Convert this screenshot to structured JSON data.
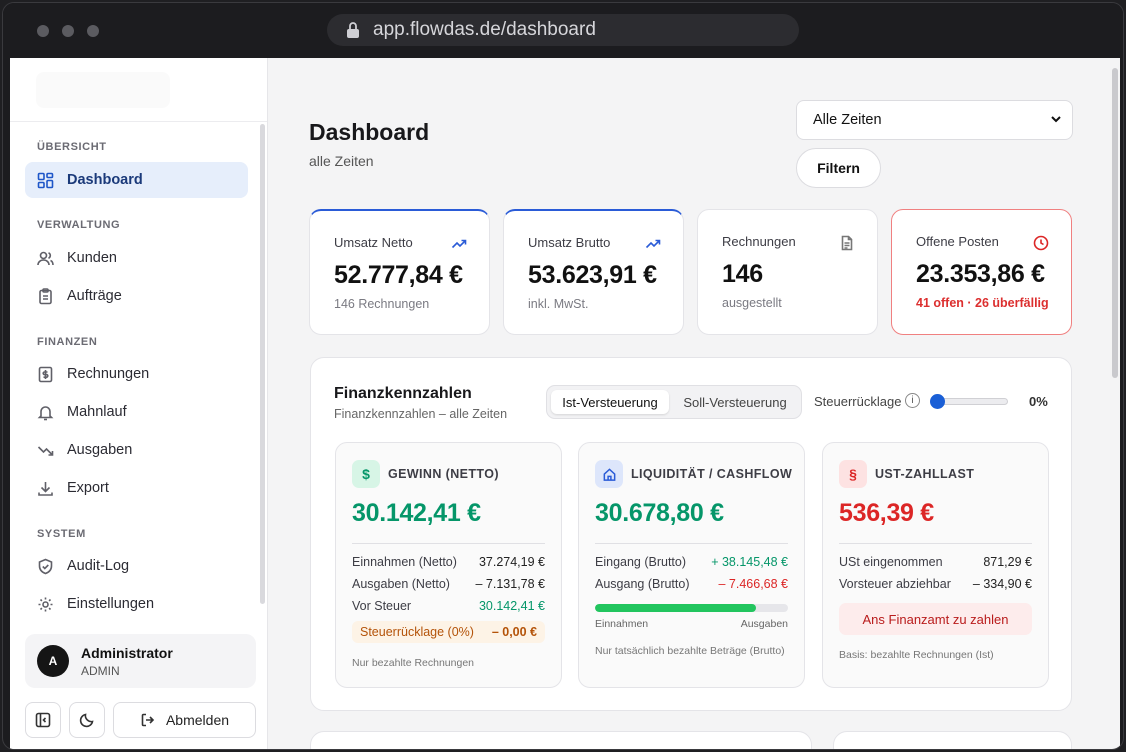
{
  "browser": {
    "url": "app.flowdas.de/dashboard"
  },
  "sidebar": {
    "sections": {
      "overview": "ÜBERSICHT",
      "admin": "VERWALTUNG",
      "finance": "FINANZEN",
      "system": "SYSTEM"
    },
    "items": {
      "dashboard": "Dashboard",
      "customers": "Kunden",
      "orders": "Aufträge",
      "invoices": "Rechnungen",
      "dunning": "Mahnlauf",
      "expenses": "Ausgaben",
      "export": "Export",
      "audit": "Audit-Log",
      "settings": "Einstellungen"
    },
    "active": "dashboard",
    "user": {
      "initial": "A",
      "name": "Administrator",
      "role": "ADMIN"
    },
    "logout_label": "Abmelden"
  },
  "header": {
    "title": "Dashboard",
    "subtitle": "alle Zeiten",
    "period_select": "Alle Zeiten",
    "filter_label": "Filtern"
  },
  "kpis": [
    {
      "label": "Umsatz Netto",
      "value": "52.777,84 €",
      "sub": "146 Rechnungen",
      "icon": "trend-up-icon"
    },
    {
      "label": "Umsatz Brutto",
      "value": "53.623,91 €",
      "sub": "inkl. MwSt.",
      "icon": "trend-up-icon"
    },
    {
      "label": "Rechnungen",
      "value": "146",
      "sub": "ausgestellt",
      "icon": "document-icon"
    },
    {
      "label": "Offene Posten",
      "value": "23.353,86 €",
      "sub": "41 offen · 26 überfällig",
      "icon": "clock-icon"
    }
  ],
  "finance": {
    "title": "Finanzkennzahlen",
    "subtitle": "Finanzkennzahlen – alle Zeiten",
    "tabs": [
      "Ist-Versteuerung",
      "Soll-Versteuerung"
    ],
    "active_tab": 0,
    "tax_reserve_label": "Steuerrücklage",
    "tax_reserve_value": "0%",
    "tax_reserve_level": 0,
    "profit": {
      "title": "GEWINN (NETTO)",
      "badge": "$",
      "value": "30.142,41 €",
      "rows": [
        {
          "label": "Einnahmen (Netto)",
          "value": "37.274,19 €"
        },
        {
          "label": "Ausgaben (Netto)",
          "value": "– 7.131,78 €"
        },
        {
          "label": "Vor Steuer",
          "value": "30.142,41 €"
        }
      ],
      "reserve_label": "Steuerrücklage (0%)",
      "reserve_value": "– 0,00 €",
      "note": "Nur bezahlte Rechnungen"
    },
    "liquidity": {
      "title": "LIQUIDITÄT / CASHFLOW",
      "value": "30.678,80 €",
      "rows": [
        {
          "label": "Eingang (Brutto)",
          "value": "+ 38.145,48 €"
        },
        {
          "label": "Ausgang (Brutto)",
          "value": "– 7.466,68 €"
        }
      ],
      "income_share": 0.836,
      "bar_left": "Einnahmen",
      "bar_right": "Ausgaben",
      "note": "Nur tatsächlich bezahlte Beträge (Brutto)"
    },
    "vat": {
      "title": "UST-ZAHLLAST",
      "badge": "§",
      "value": "536,39 €",
      "rows": [
        {
          "label": "USt eingenommen",
          "value": "871,29 €"
        },
        {
          "label": "Vorsteuer abziehbar",
          "value": "– 334,90 €"
        }
      ],
      "pay_label": "Ans Finanzamt zu zahlen",
      "note": "Basis: bezahlte Rechnungen (Ist)"
    }
  },
  "colors": {
    "accent": "#1e56c8",
    "green": "#059669",
    "red": "#dc2626",
    "orange": "#b45309"
  }
}
